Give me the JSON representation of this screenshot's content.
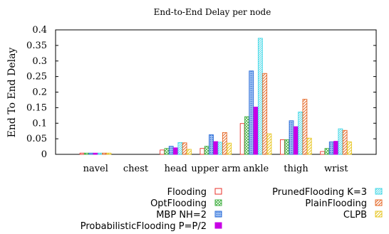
{
  "chart_data": {
    "type": "bar",
    "title": "End-to-End Delay per node",
    "xlabel": "",
    "ylabel": "End To End Delay",
    "ylim": [
      0,
      0.4
    ],
    "yticks": [
      "0",
      "0.05",
      "0.1",
      "0.15",
      "0.2",
      "0.25",
      "0.3",
      "0.35",
      "0.4"
    ],
    "categories": [
      "navel",
      "chest",
      "head",
      "upper arm",
      "ankle",
      "thigh",
      "wrist"
    ],
    "grid": false,
    "legend_position": "bottom",
    "series": [
      {
        "name": "Flooding",
        "color": "#e8312a",
        "pattern": "outline",
        "values": [
          0.004,
          0.0,
          0.014,
          0.019,
          0.099,
          0.047,
          0.009
        ]
      },
      {
        "name": "OptFlooding",
        "color": "#45b245",
        "pattern": "cross",
        "values": [
          0.004,
          0.0,
          0.019,
          0.026,
          0.121,
          0.047,
          0.019
        ]
      },
      {
        "name": "MBP NH=2",
        "color": "#2f6fd8",
        "pattern": "dots",
        "values": [
          0.004,
          0.0,
          0.026,
          0.063,
          0.268,
          0.108,
          0.04
        ]
      },
      {
        "name": "ProbabilisticFlooding P=P/2",
        "color": "#c800e6",
        "pattern": "solid",
        "values": [
          0.004,
          0.0,
          0.021,
          0.041,
          0.152,
          0.089,
          0.042
        ]
      },
      {
        "name": "PrunedFlooding K=3",
        "color": "#41d7e6",
        "pattern": "hatch-dense",
        "values": [
          0.004,
          0.0,
          0.038,
          0.039,
          0.373,
          0.136,
          0.082
        ]
      },
      {
        "name": "PlainFlooding",
        "color": "#e56a2a",
        "pattern": "hatch",
        "values": [
          0.004,
          0.0,
          0.037,
          0.07,
          0.26,
          0.177,
          0.077
        ]
      },
      {
        "name": "CLPB",
        "color": "#e6c521",
        "pattern": "hatch",
        "values": [
          0.004,
          0.0,
          0.016,
          0.036,
          0.066,
          0.052,
          0.04
        ]
      }
    ]
  }
}
